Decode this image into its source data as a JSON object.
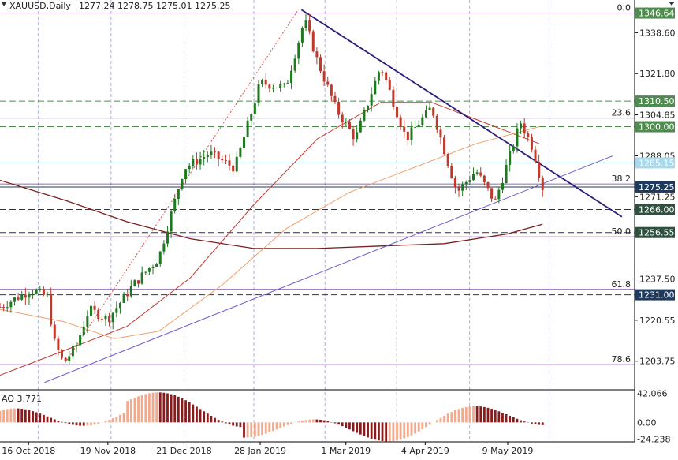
{
  "header": {
    "symbol": "XAUUSD,Daily",
    "ohlc": "1277.24 1278.75 1275.01 1275.25",
    "menu_glyph": "▾"
  },
  "colors": {
    "bull": "#1f7a1f",
    "bear": "#c0392b",
    "ma_fast": "#f4a06a",
    "ma_mid": "#c0392b",
    "ma_slow": "#7a1f1f",
    "trend_down": "#2b1a7a",
    "trend_up": "#6a5acd",
    "fib": "#6a3d9a",
    "level": "#4f8a4f",
    "level_box": "#4f8a4f",
    "price_box": "#1e3a5f",
    "ao_up": "#f4a98a",
    "ao_down": "#8b1a1a"
  },
  "chart_data": {
    "type": "candlestick",
    "price_axis_ticks": [
      "1338.60",
      "1321.80",
      "1304.85",
      "1288.05",
      "1271.25",
      "1237.50",
      "1220.55",
      "1203.75"
    ],
    "price_axis_range": [
      1192,
      1352
    ],
    "horizontal_levels": [
      {
        "label": "1346.64",
        "value": 1346.64,
        "style": "dashed",
        "color": "#4f8a4f"
      },
      {
        "label": "1310.50",
        "value": 1310.5,
        "style": "dashed",
        "color": "#4f8a4f"
      },
      {
        "label": "1300.00",
        "value": 1300.0,
        "style": "dashed",
        "color": "#4f8a4f"
      },
      {
        "label": "1285.15",
        "value": 1285.15,
        "style": "solid",
        "color": "#a8d8ea"
      },
      {
        "label": "1275.25",
        "value": 1275.25,
        "style": "solid",
        "color": "#1e3a5f"
      },
      {
        "label": "1266.00",
        "value": 1266.0,
        "style": "dashed",
        "color": "#333333"
      },
      {
        "label": "1256.55",
        "value": 1256.55,
        "style": "dashed",
        "color": "#333333"
      },
      {
        "label": "1231.00",
        "value": 1231.0,
        "style": "dashed",
        "color": "#1e3a5f"
      }
    ],
    "fibonacci": [
      {
        "label": "0.0",
        "value": 1346.64
      },
      {
        "label": "23.6",
        "value": 1303.5
      },
      {
        "label": "38.2",
        "value": 1276.5
      },
      {
        "label": "50.0",
        "value": 1254.8
      },
      {
        "label": "61.8",
        "value": 1233.2
      },
      {
        "label": "78.6",
        "value": 1202.3
      }
    ],
    "x_ticks": [
      "16 Oct 2018",
      "19 Nov 2018",
      "21 Dec 2018",
      "28 Jan 2019",
      "1 Mar 2019",
      "4 Apr 2019",
      "9 May 2019"
    ],
    "indicator": {
      "name": "AO 3.771",
      "axis_ticks": [
        "42.066",
        "0.00",
        "-24.238"
      ],
      "range": [
        -26,
        44
      ]
    },
    "close_path": [
      {
        "t": 0,
        "p": 1226
      },
      {
        "t": 0.05,
        "p": 1233
      },
      {
        "t": 0.075,
        "p": 1230
      },
      {
        "t": 0.085,
        "p": 1212
      },
      {
        "t": 0.1,
        "p": 1203
      },
      {
        "t": 0.12,
        "p": 1210
      },
      {
        "t": 0.14,
        "p": 1225
      },
      {
        "t": 0.17,
        "p": 1221
      },
      {
        "t": 0.21,
        "p": 1235
      },
      {
        "t": 0.25,
        "p": 1246
      },
      {
        "t": 0.29,
        "p": 1283
      },
      {
        "t": 0.33,
        "p": 1289
      },
      {
        "t": 0.37,
        "p": 1283
      },
      {
        "t": 0.41,
        "p": 1318
      },
      {
        "t": 0.45,
        "p": 1316
      },
      {
        "t": 0.48,
        "p": 1344
      },
      {
        "t": 0.5,
        "p": 1327
      },
      {
        "t": 0.53,
        "p": 1307
      },
      {
        "t": 0.56,
        "p": 1295
      },
      {
        "t": 0.6,
        "p": 1325
      },
      {
        "t": 0.64,
        "p": 1295
      },
      {
        "t": 0.68,
        "p": 1308
      },
      {
        "t": 0.72,
        "p": 1273
      },
      {
        "t": 0.75,
        "p": 1282
      },
      {
        "t": 0.78,
        "p": 1269
      },
      {
        "t": 0.82,
        "p": 1302
      },
      {
        "t": 0.84,
        "p": 1291
      },
      {
        "t": 0.855,
        "p": 1275
      }
    ],
    "ma_slow_path": [
      {
        "t": 0,
        "p": 1278
      },
      {
        "t": 0.1,
        "p": 1270
      },
      {
        "t": 0.2,
        "p": 1261
      },
      {
        "t": 0.3,
        "p": 1254
      },
      {
        "t": 0.4,
        "p": 1250
      },
      {
        "t": 0.5,
        "p": 1250
      },
      {
        "t": 0.6,
        "p": 1251
      },
      {
        "t": 0.7,
        "p": 1252
      },
      {
        "t": 0.8,
        "p": 1256
      },
      {
        "t": 0.855,
        "p": 1260
      }
    ],
    "ma_mid_path": [
      {
        "t": 0,
        "p": 1198
      },
      {
        "t": 0.1,
        "p": 1208
      },
      {
        "t": 0.2,
        "p": 1218
      },
      {
        "t": 0.3,
        "p": 1238
      },
      {
        "t": 0.4,
        "p": 1268
      },
      {
        "t": 0.5,
        "p": 1295
      },
      {
        "t": 0.6,
        "p": 1310
      },
      {
        "t": 0.68,
        "p": 1310
      },
      {
        "t": 0.78,
        "p": 1300
      },
      {
        "t": 0.85,
        "p": 1293
      }
    ],
    "ma_fast_path": [
      {
        "t": 0,
        "p": 1225
      },
      {
        "t": 0.1,
        "p": 1220
      },
      {
        "t": 0.18,
        "p": 1213
      },
      {
        "t": 0.25,
        "p": 1216
      },
      {
        "t": 0.35,
        "p": 1235
      },
      {
        "t": 0.45,
        "p": 1258
      },
      {
        "t": 0.55,
        "p": 1273
      },
      {
        "t": 0.65,
        "p": 1283
      },
      {
        "t": 0.75,
        "p": 1293
      },
      {
        "t": 0.85,
        "p": 1300
      }
    ],
    "trend_lines": [
      {
        "name": "down",
        "from": {
          "t": 0.475,
          "p": 1348
        },
        "to": {
          "t": 0.98,
          "p": 1263
        },
        "color": "#2b1a7a"
      },
      {
        "name": "up",
        "from": {
          "t": 0.07,
          "p": 1195
        },
        "to": {
          "t": 0.965,
          "p": 1288
        },
        "color": "#6a5acd"
      },
      {
        "name": "fib-anchor",
        "from": {
          "t": 0.1,
          "p": 1202
        },
        "to": {
          "t": 0.47,
          "p": 1348
        },
        "color": "#e05050"
      }
    ]
  }
}
